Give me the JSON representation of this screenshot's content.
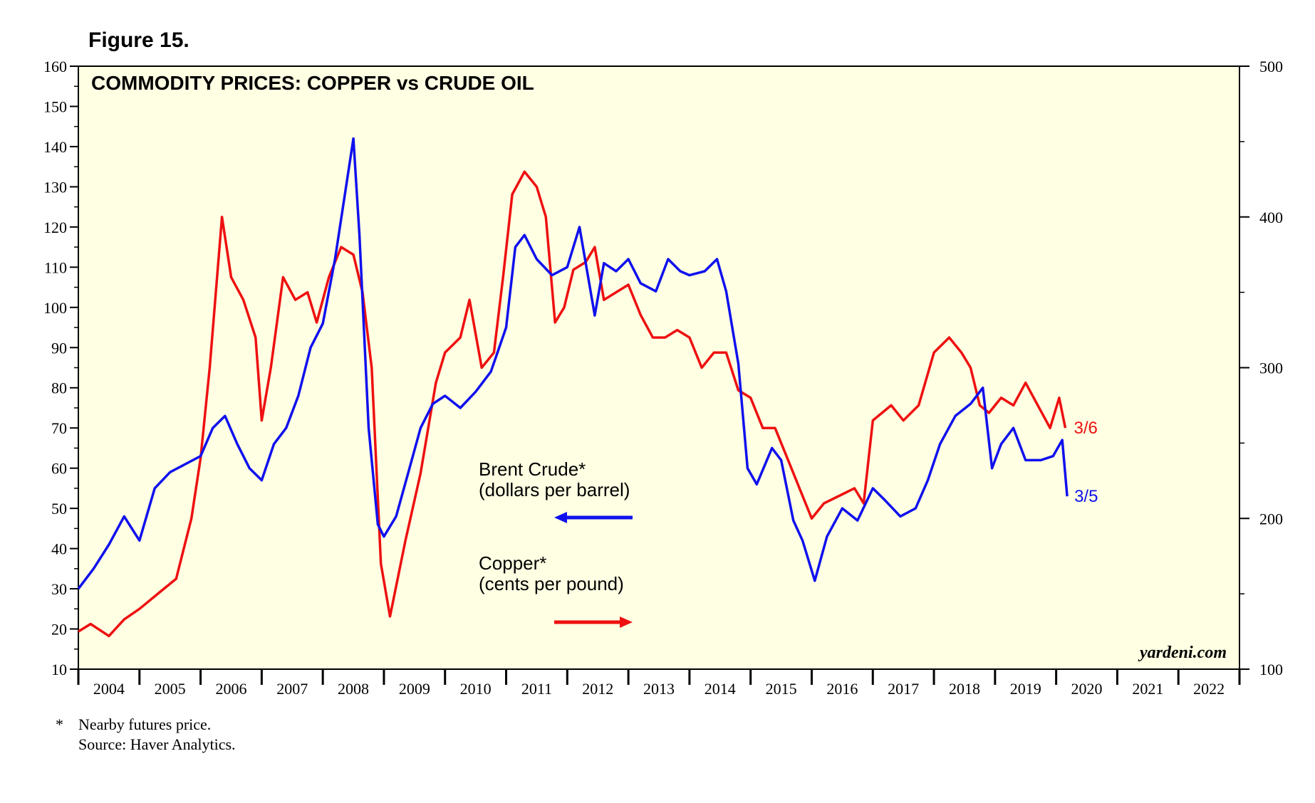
{
  "figure_label": "Figure 15.",
  "footnote": {
    "marker": "*",
    "line1": "Nearby futures price.",
    "line2": "Source: Haver Analytics."
  },
  "colors": {
    "background_plot": "#ffffe3",
    "brent": "#1010ee",
    "copper": "#ee1010"
  },
  "chart_data": {
    "type": "line",
    "title": "COMMODITY PRICES: COPPER vs CRUDE OIL",
    "credit": "yardeni.com",
    "x_range": [
      2004.0,
      2023.0
    ],
    "x_tick_labels": [
      "2004",
      "2005",
      "2006",
      "2007",
      "2008",
      "2009",
      "2010",
      "2011",
      "2012",
      "2013",
      "2014",
      "2015",
      "2016",
      "2017",
      "2018",
      "2019",
      "2020",
      "2021",
      "2022"
    ],
    "y_left": {
      "range": [
        10,
        160
      ],
      "ticks": [
        10,
        20,
        30,
        40,
        50,
        60,
        70,
        80,
        90,
        100,
        110,
        120,
        130,
        140,
        150,
        160
      ]
    },
    "y_right": {
      "range": [
        100,
        500
      ],
      "ticks": [
        100,
        200,
        300,
        400,
        500
      ]
    },
    "legend": [
      {
        "label": "Brent Crude*",
        "sublabel": "(dollars per barrel)",
        "arrow": "left"
      },
      {
        "label": "Copper*",
        "sublabel": "(cents per pound)",
        "arrow": "right"
      }
    ],
    "series": [
      {
        "name": "Brent Crude*",
        "axis": "left",
        "end_label": "3/5",
        "x": [
          2004.0,
          2004.25,
          2004.5,
          2004.75,
          2005.0,
          2005.25,
          2005.5,
          2005.75,
          2006.0,
          2006.2,
          2006.4,
          2006.6,
          2006.8,
          2007.0,
          2007.2,
          2007.4,
          2007.6,
          2007.8,
          2008.0,
          2008.2,
          2008.4,
          2008.5,
          2008.6,
          2008.75,
          2008.9,
          2009.0,
          2009.2,
          2009.4,
          2009.6,
          2009.8,
          2010.0,
          2010.25,
          2010.5,
          2010.75,
          2011.0,
          2011.15,
          2011.3,
          2011.5,
          2011.75,
          2012.0,
          2012.2,
          2012.45,
          2012.6,
          2012.8,
          2013.0,
          2013.2,
          2013.45,
          2013.65,
          2013.85,
          2014.0,
          2014.25,
          2014.45,
          2014.6,
          2014.8,
          2014.95,
          2015.1,
          2015.35,
          2015.5,
          2015.7,
          2015.85,
          2016.05,
          2016.25,
          2016.5,
          2016.75,
          2017.0,
          2017.2,
          2017.45,
          2017.7,
          2017.9,
          2018.1,
          2018.35,
          2018.6,
          2018.8,
          2018.95,
          2019.1,
          2019.3,
          2019.5,
          2019.75,
          2019.95,
          2020.1,
          2020.18
        ],
        "y": [
          30,
          35,
          41,
          48,
          42,
          55,
          59,
          61,
          63,
          70,
          73,
          66,
          60,
          57,
          66,
          70,
          78,
          90,
          96,
          112,
          132,
          142,
          118,
          70,
          46,
          43,
          48,
          59,
          70,
          76,
          78,
          75,
          79,
          84,
          95,
          115,
          118,
          112,
          108,
          110,
          120,
          98,
          111,
          109,
          112,
          106,
          104,
          112,
          109,
          108,
          109,
          112,
          104,
          86,
          60,
          56,
          65,
          62,
          47,
          42,
          32,
          43,
          50,
          47,
          55,
          52,
          48,
          50,
          57,
          66,
          73,
          76,
          80,
          60,
          66,
          70,
          62,
          62,
          63,
          67,
          53
        ]
      },
      {
        "name": "Copper*",
        "axis": "right",
        "end_label": "3/6",
        "x": [
          2004.0,
          2004.2,
          2004.5,
          2004.75,
          2005.0,
          2005.3,
          2005.6,
          2005.85,
          2006.0,
          2006.15,
          2006.35,
          2006.5,
          2006.7,
          2006.9,
          2007.0,
          2007.15,
          2007.35,
          2007.55,
          2007.75,
          2007.9,
          2008.1,
          2008.3,
          2008.5,
          2008.65,
          2008.8,
          2008.95,
          2009.1,
          2009.35,
          2009.6,
          2009.85,
          2010.0,
          2010.25,
          2010.4,
          2010.6,
          2010.8,
          2010.95,
          2011.1,
          2011.3,
          2011.5,
          2011.65,
          2011.8,
          2011.95,
          2012.1,
          2012.3,
          2012.45,
          2012.6,
          2012.8,
          2013.0,
          2013.2,
          2013.4,
          2013.6,
          2013.8,
          2014.0,
          2014.2,
          2014.4,
          2014.6,
          2014.8,
          2015.0,
          2015.2,
          2015.4,
          2015.6,
          2015.8,
          2016.0,
          2016.2,
          2016.45,
          2016.7,
          2016.85,
          2017.0,
          2017.3,
          2017.5,
          2017.75,
          2018.0,
          2018.25,
          2018.45,
          2018.6,
          2018.75,
          2018.9,
          2019.1,
          2019.3,
          2019.5,
          2019.7,
          2019.9,
          2020.05,
          2020.15
        ],
        "y": [
          125,
          130,
          122,
          133,
          140,
          150,
          160,
          200,
          240,
          300,
          400,
          360,
          345,
          320,
          265,
          300,
          360,
          345,
          350,
          330,
          360,
          380,
          375,
          350,
          300,
          170,
          135,
          185,
          230,
          290,
          310,
          320,
          345,
          300,
          310,
          360,
          415,
          430,
          420,
          400,
          330,
          340,
          365,
          370,
          380,
          345,
          350,
          355,
          335,
          320,
          320,
          325,
          320,
          300,
          310,
          310,
          285,
          280,
          260,
          260,
          240,
          220,
          200,
          210,
          215,
          220,
          210,
          265,
          275,
          265,
          275,
          310,
          320,
          310,
          300,
          275,
          270,
          280,
          275,
          290,
          275,
          260,
          280,
          260
        ]
      }
    ]
  }
}
